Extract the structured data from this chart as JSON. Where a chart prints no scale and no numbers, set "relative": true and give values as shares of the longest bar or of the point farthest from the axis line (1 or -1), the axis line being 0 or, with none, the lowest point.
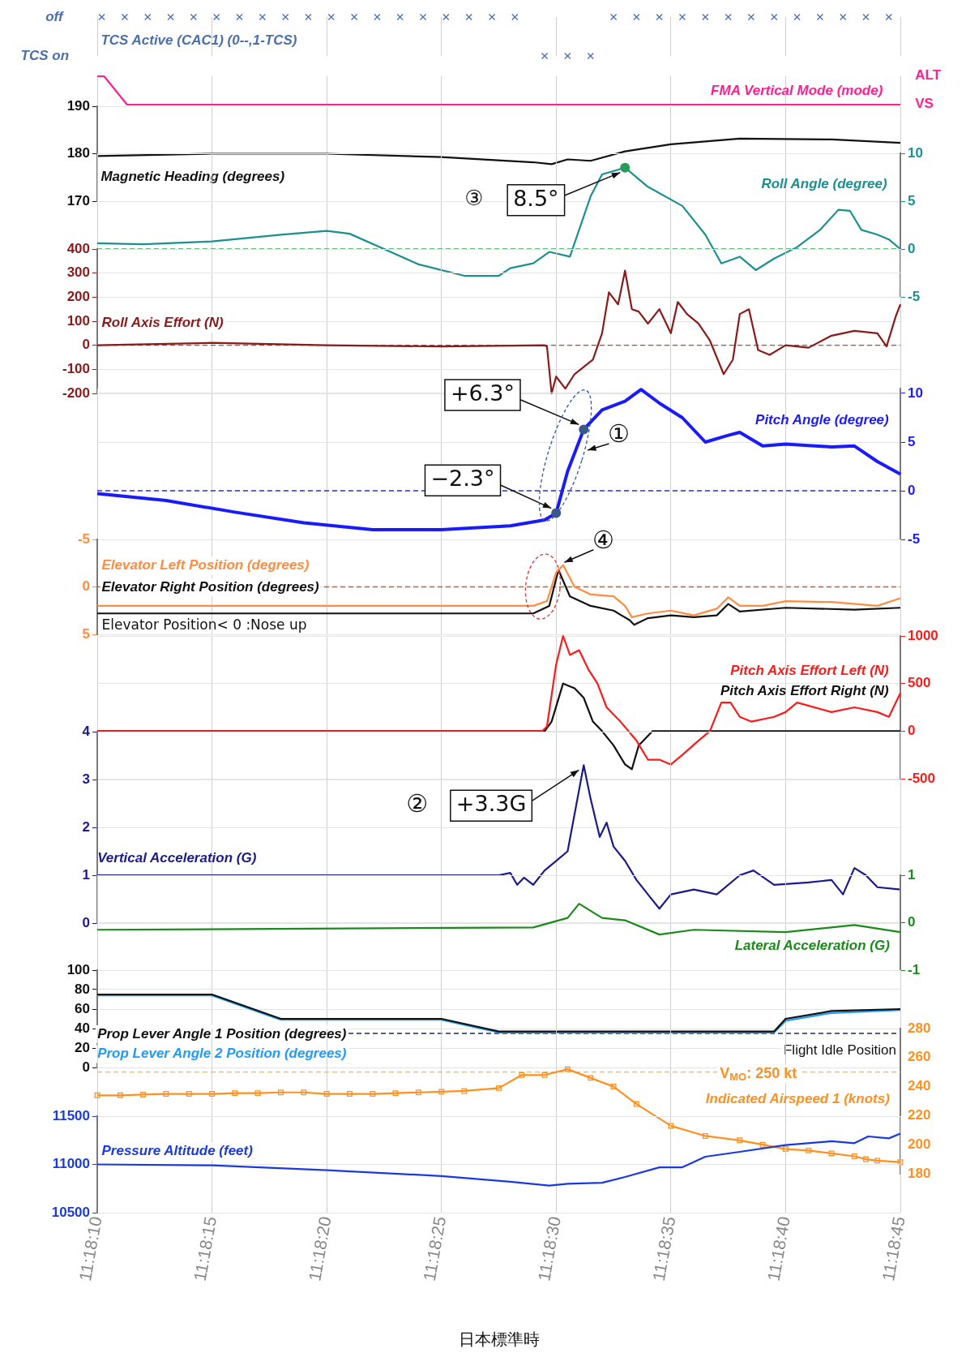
{
  "chart_data": [
    {
      "type": "scatter",
      "relative": true,
      "marker": "cross",
      "grid": true,
      "tick_labels": "y",
      "xlim": [
        11.302778,
        11.3125
      ],
      "xticks": [
        {
          "value": 11.302778,
          "label": null
        },
        {
          "value": 11.304167,
          "label": null
        },
        {
          "value": 11.305556,
          "label": null
        },
        {
          "value": 11.306944,
          "label": null
        },
        {
          "value": 11.308333,
          "label": null
        },
        {
          "value": 11.309722,
          "label": null
        },
        {
          "value": 11.311111,
          "label": null
        },
        {
          "value": 11.3125,
          "label": null
        }
      ],
      "annotations": [
        "off",
        "TCS on"
      ],
      "series": [
        {
          "name": "TCS Active (CAC1) (0--,1-TCS)",
          "color": "#4a6fb0",
          "x": [
            11.302833,
            11.303111,
            11.303389,
            11.303667,
            11.303944,
            11.304222,
            11.3045,
            11.304778,
            11.305056,
            11.305333,
            11.305611,
            11.305889,
            11.306167,
            11.306444,
            11.306722,
            11.307,
            11.307278,
            11.307556,
            11.307833,
            11.308194,
            11.308472,
            11.30875,
            11.309028,
            11.309306,
            11.309583,
            11.309861,
            11.310139,
            11.310417,
            11.310694,
            11.310972,
            11.31125,
            11.311528,
            11.311806,
            11.312083,
            11.312361
          ],
          "values": [
            1,
            1,
            1,
            1,
            1,
            1,
            1,
            1,
            1,
            1,
            1,
            1,
            1,
            1,
            1,
            1,
            1,
            1,
            1,
            0,
            0,
            0,
            1,
            1,
            1,
            1,
            1,
            1,
            1,
            1,
            1,
            1,
            1,
            1,
            1
          ]
        }
      ]
    },
    {
      "type": "line",
      "relative": true,
      "grid": true,
      "tick_labels": "y",
      "xlim": [
        11.302778,
        11.3125
      ],
      "xticks": [
        {
          "value": 11.302778,
          "label": null
        },
        {
          "value": 11.304167,
          "label": null
        },
        {
          "value": 11.305556,
          "label": null
        },
        {
          "value": 11.306944,
          "label": null
        },
        {
          "value": 11.308333,
          "label": null
        },
        {
          "value": 11.309722,
          "label": null
        },
        {
          "value": 11.311111,
          "label": null
        },
        {
          "value": 11.3125,
          "label": null
        }
      ],
      "annotations": [
        "ALT",
        "VS"
      ],
      "series": [
        {
          "name": "FMA Vertical Mode (mode)",
          "color": "#ff1f8f",
          "x": [
            11.302778,
            11.302861,
            11.303139,
            11.3125
          ],
          "values": [
            1,
            1,
            0,
            0
          ]
        }
      ]
    },
    {
      "type": "line",
      "grid": true,
      "tick_labels": "y",
      "xlim": [
        11.302778,
        11.3125
      ],
      "xticks": [
        {
          "value": 11.302778,
          "label": null
        },
        {
          "value": 11.304167,
          "label": null
        },
        {
          "value": 11.305556,
          "label": null
        },
        {
          "value": 11.306944,
          "label": null
        },
        {
          "value": 11.308333,
          "label": null
        },
        {
          "value": 11.309722,
          "label": null
        },
        {
          "value": 11.311111,
          "label": null
        },
        {
          "value": 11.3125,
          "label": null
        }
      ],
      "ylim": [
        170,
        190
      ],
      "yticks": [
        170,
        180,
        190
      ],
      "series": [
        {
          "name": "Magnetic Heading (degrees)",
          "color": "#111111",
          "x": [
            11.302778,
            11.304167,
            11.305556,
            11.306944,
            11.308056,
            11.308278,
            11.308472,
            11.30875,
            11.309167,
            11.309722,
            11.310556,
            11.311667,
            11.3125
          ],
          "values": [
            179.5,
            180,
            180,
            179.3,
            178.2,
            177.8,
            178.8,
            178.5,
            180.5,
            182,
            183.2,
            183,
            182.3
          ]
        }
      ]
    },
    {
      "type": "line",
      "grid": true,
      "tick_labels": "y",
      "xlim": [
        11.302778,
        11.3125
      ],
      "xticks": [
        {
          "value": 11.302778,
          "label": null
        },
        {
          "value": 11.304167,
          "label": null
        },
        {
          "value": 11.305556,
          "label": null
        },
        {
          "value": 11.306944,
          "label": null
        },
        {
          "value": 11.308333,
          "label": null
        },
        {
          "value": 11.309722,
          "label": null
        },
        {
          "value": 11.311111,
          "label": null
        },
        {
          "value": 11.3125,
          "label": null
        }
      ],
      "ylim": [
        -5,
        10
      ],
      "yticks": [
        -5,
        0,
        5,
        10
      ],
      "ref_lines": [
        {
          "axis": "y",
          "value": 0,
          "color": "#2aa84a",
          "line_style": "dashed"
        }
      ],
      "annotations": [
        "③",
        {
          "text": "8.5°",
          "x": 11.309167,
          "y": 8.5
        }
      ],
      "series": [
        {
          "name": "Roll Angle (degree)",
          "color": "#1a9090",
          "x": [
            11.302778,
            11.303333,
            11.304167,
            11.305,
            11.305556,
            11.305833,
            11.30625,
            11.306667,
            11.307222,
            11.307639,
            11.307778,
            11.308056,
            11.30825,
            11.3085,
            11.308611,
            11.30875,
            11.308889,
            11.309167,
            11.309444,
            11.309861,
            11.310139,
            11.310333,
            11.310556,
            11.31075,
            11.310972,
            11.31125,
            11.311528,
            11.31175,
            11.311889,
            11.312028,
            11.312222,
            11.312361,
            11.3125
          ],
          "values": [
            0.6,
            0.5,
            0.8,
            1.5,
            1.9,
            1.6,
            0,
            -1.6,
            -2.8,
            -2.8,
            -2,
            -1.5,
            -0.3,
            -0.8,
            2,
            5.5,
            7.8,
            8.5,
            6.5,
            4.5,
            1.5,
            -1.5,
            -0.8,
            -2.2,
            -1,
            0.2,
            2,
            4.1,
            4,
            2,
            1.5,
            1,
            0
          ]
        }
      ]
    },
    {
      "type": "line",
      "grid": true,
      "tick_labels": "y",
      "xlim": [
        11.302778,
        11.3125
      ],
      "xticks": [
        {
          "value": 11.302778,
          "label": null
        },
        {
          "value": 11.304167,
          "label": null
        },
        {
          "value": 11.305556,
          "label": null
        },
        {
          "value": 11.306944,
          "label": null
        },
        {
          "value": 11.308333,
          "label": null
        },
        {
          "value": 11.309722,
          "label": null
        },
        {
          "value": 11.311111,
          "label": null
        },
        {
          "value": 11.3125,
          "label": null
        }
      ],
      "ylim": [
        -200,
        400
      ],
      "yticks": [
        -200,
        -100,
        0,
        100,
        200,
        300,
        400
      ],
      "ref_lines": [
        {
          "axis": "y",
          "value": 0,
          "color": "#a0502a",
          "line_style": "dashed"
        }
      ],
      "series": [
        {
          "name": "Roll Axis Effort (N)",
          "color": "#8b1a1a",
          "x": [
            11.302778,
            11.304167,
            11.305556,
            11.306944,
            11.308194,
            11.308222,
            11.308278,
            11.308333,
            11.308444,
            11.308556,
            11.308667,
            11.308778,
            11.308889,
            11.308972,
            11.309083,
            11.309167,
            11.30925,
            11.309333,
            11.309444,
            11.309583,
            11.309722,
            11.309806,
            11.309917,
            11.310056,
            11.310194,
            11.310361,
            11.310472,
            11.310556,
            11.310667,
            11.310778,
            11.310917,
            11.311111,
            11.311389,
            11.311667,
            11.311944,
            11.312222,
            11.312333,
            11.312444,
            11.3125
          ],
          "values": [
            0,
            10,
            0,
            -5,
            0,
            -5,
            -200,
            -130,
            -180,
            -120,
            -90,
            -60,
            50,
            220,
            170,
            310,
            150,
            140,
            90,
            150,
            50,
            180,
            130,
            90,
            20,
            -120,
            -60,
            130,
            150,
            -20,
            -40,
            0,
            -10,
            40,
            60,
            50,
            -5,
            120,
            170
          ]
        }
      ]
    },
    {
      "type": "line",
      "grid": true,
      "tick_labels": "y",
      "xlim": [
        11.302778,
        11.3125
      ],
      "xticks": [
        {
          "value": 11.302778,
          "label": null
        },
        {
          "value": 11.304167,
          "label": null
        },
        {
          "value": 11.305556,
          "label": null
        },
        {
          "value": 11.306944,
          "label": null
        },
        {
          "value": 11.308333,
          "label": null
        },
        {
          "value": 11.309722,
          "label": null
        },
        {
          "value": 11.311111,
          "label": null
        },
        {
          "value": 11.3125,
          "label": null
        }
      ],
      "ylim": [
        -5,
        10.5
      ],
      "yticks": [
        -5,
        0,
        5,
        10
      ],
      "ref_lines": [
        {
          "axis": "y",
          "value": 0,
          "color": "#2a3ab0",
          "line_style": "dashed"
        }
      ],
      "annotations": [
        {
          "text": "+6.3°",
          "x": 11.308667,
          "y": 6.3
        },
        {
          "text": "−2.3°",
          "x": 11.308333,
          "y": -2.3
        },
        "①"
      ],
      "series": [
        {
          "name": "Pitch Angle (degree)",
          "color": "#1a1aff",
          "x": [
            11.302778,
            11.303611,
            11.304444,
            11.305278,
            11.306111,
            11.306944,
            11.307778,
            11.308194,
            11.308333,
            11.308472,
            11.308667,
            11.308889,
            11.309167,
            11.309361,
            11.309583,
            11.309861,
            11.310139,
            11.310417,
            11.310556,
            11.310833,
            11.311111,
            11.311667,
            11.311944,
            11.312222,
            11.3125
          ],
          "values": [
            -0.3,
            -1,
            -2.2,
            -3.3,
            -4,
            -4,
            -3.6,
            -3,
            -2.3,
            2,
            6.3,
            8.3,
            9.2,
            10.4,
            9,
            7.5,
            5,
            5.7,
            6,
            4.6,
            4.8,
            4.5,
            4.6,
            3,
            1.7
          ]
        }
      ]
    },
    {
      "type": "line",
      "grid": true,
      "tick_labels": "y",
      "xlim": [
        11.302778,
        11.3125
      ],
      "xticks": [
        {
          "value": 11.302778,
          "label": null
        },
        {
          "value": 11.304167,
          "label": null
        },
        {
          "value": 11.305556,
          "label": null
        },
        {
          "value": 11.306944,
          "label": null
        },
        {
          "value": 11.308333,
          "label": null
        },
        {
          "value": 11.309722,
          "label": null
        },
        {
          "value": 11.311111,
          "label": null
        },
        {
          "value": 11.3125,
          "label": null
        }
      ],
      "ylim": [
        5,
        -5
      ],
      "yticks": [
        -5,
        0,
        5
      ],
      "ref_lines": [
        {
          "axis": "y",
          "value": 0,
          "color": "#c0602a",
          "line_style": "dashed"
        }
      ],
      "annotations": [
        "④",
        "Elevator Position< 0 :Nose up"
      ],
      "series": [
        {
          "name": "Elevator Left Position (degrees)",
          "color": "#ff8c40",
          "x": [
            11.302778,
            11.308056,
            11.308222,
            11.308333,
            11.308417,
            11.308556,
            11.30875,
            11.309028,
            11.309167,
            11.30925,
            11.309444,
            11.309722,
            11.31,
            11.310278,
            11.310417,
            11.310556,
            11.310833,
            11.311111,
            11.311667,
            11.312222,
            11.3125
          ],
          "values": [
            2,
            2,
            1.5,
            -1.5,
            -2.3,
            0,
            0.8,
            1,
            2,
            3.2,
            2.8,
            2.5,
            3,
            2.3,
            1.1,
            2,
            2,
            1.5,
            1.6,
            2,
            1.2
          ]
        },
        {
          "name": "Elevator Right Position (degrees)",
          "color": "#111111",
          "x": [
            11.302778,
            11.308056,
            11.30825,
            11.308361,
            11.3085,
            11.30875,
            11.309028,
            11.309222,
            11.309278,
            11.309444,
            11.309722,
            11.31,
            11.310278,
            11.310417,
            11.310556,
            11.311111,
            11.311944,
            11.3125
          ],
          "values": [
            2.8,
            2.8,
            2,
            -1.8,
            1,
            2,
            2.5,
            3.5,
            4,
            3.3,
            3,
            3.2,
            3,
            1.8,
            2.6,
            2.2,
            2.4,
            2.2
          ]
        }
      ]
    },
    {
      "type": "line",
      "grid": true,
      "tick_labels": "y",
      "xlim": [
        11.302778,
        11.3125
      ],
      "xticks": [
        {
          "value": 11.302778,
          "label": null
        },
        {
          "value": 11.304167,
          "label": null
        },
        {
          "value": 11.305556,
          "label": null
        },
        {
          "value": 11.306944,
          "label": null
        },
        {
          "value": 11.308333,
          "label": null
        },
        {
          "value": 11.309722,
          "label": null
        },
        {
          "value": 11.311111,
          "label": null
        },
        {
          "value": 11.3125,
          "label": null
        }
      ],
      "y2lim": [
        -500,
        1000
      ],
      "y2ticks": [
        -500,
        0,
        500,
        1000
      ],
      "series": [
        {
          "name": "Pitch Axis Effort Left (N)",
          "color": "#ff1a1a",
          "axis": "y2",
          "x": [
            11.302778,
            11.308167,
            11.308222,
            11.308333,
            11.308417,
            11.3085,
            11.308611,
            11.308722,
            11.308833,
            11.308944,
            11.309111,
            11.309306,
            11.309444,
            11.309583,
            11.309722,
            11.309861,
            11.310056,
            11.310194,
            11.310333,
            11.310444,
            11.310556,
            11.310694,
            11.310972,
            11.311111,
            11.31125,
            11.311667,
            11.311944,
            11.312222,
            11.312361,
            11.3125
          ],
          "values": [
            0,
            0,
            50,
            700,
            1000,
            800,
            850,
            650,
            500,
            250,
            100,
            -100,
            -300,
            -300,
            -350,
            -250,
            -100,
            0,
            300,
            300,
            150,
            100,
            150,
            200,
            300,
            200,
            250,
            200,
            150,
            400
          ]
        },
        {
          "name": "Pitch Axis Effort Right (N)",
          "color": "#111111",
          "axis": "y2",
          "x": [
            11.302778,
            11.308194,
            11.308278,
            11.308417,
            11.308556,
            11.308667,
            11.308778,
            11.308889,
            11.309028,
            11.309167,
            11.30925,
            11.309333,
            11.3095,
            11.309722,
            11.311111,
            11.3125
          ],
          "values": [
            0,
            0,
            100,
            500,
            450,
            350,
            100,
            0,
            -150,
            -350,
            -400,
            -150,
            0,
            0,
            0,
            0
          ]
        }
      ]
    },
    {
      "type": "line",
      "grid": true,
      "tick_labels": "y",
      "xlim": [
        11.302778,
        11.3125
      ],
      "xticks": [
        {
          "value": 11.302778,
          "label": null
        },
        {
          "value": 11.304167,
          "label": null
        },
        {
          "value": 11.305556,
          "label": null
        },
        {
          "value": 11.306944,
          "label": null
        },
        {
          "value": 11.308333,
          "label": null
        },
        {
          "value": 11.309722,
          "label": null
        },
        {
          "value": 11.311111,
          "label": null
        },
        {
          "value": 11.3125,
          "label": null
        }
      ],
      "ylim": [
        0,
        4
      ],
      "yticks": [
        0,
        1,
        2,
        3,
        4
      ],
      "annotations": [
        "②",
        {
          "text": "+3.3G",
          "x": 11.308667,
          "y": 3.3
        }
      ],
      "series": [
        {
          "name": "Vertical Acceleration (G)",
          "color": "#1a1a8b",
          "x": [
            11.302778,
            11.307639,
            11.307778,
            11.307861,
            11.307944,
            11.308056,
            11.308194,
            11.308333,
            11.308472,
            11.308667,
            11.30875,
            11.308861,
            11.308944,
            11.309028,
            11.309167,
            11.309306,
            11.309444,
            11.309583,
            11.309722,
            11.31,
            11.310278,
            11.310556,
            11.310722,
            11.310972,
            11.311389,
            11.311667,
            11.311806,
            11.311944,
            11.312083,
            11.312222,
            11.3125
          ],
          "values": [
            1,
            1,
            1.05,
            0.8,
            0.95,
            0.8,
            1.1,
            1.3,
            1.5,
            3.3,
            2.6,
            1.8,
            2.1,
            1.6,
            1.3,
            0.9,
            0.6,
            0.3,
            0.6,
            0.7,
            0.6,
            1,
            1.1,
            0.8,
            0.85,
            0.9,
            0.6,
            1.15,
            1,
            0.75,
            0.7
          ]
        }
      ]
    },
    {
      "type": "line",
      "grid": true,
      "tick_labels": "y",
      "xlim": [
        11.302778,
        11.3125
      ],
      "xticks": [
        {
          "value": 11.302778,
          "label": null
        },
        {
          "value": 11.304167,
          "label": null
        },
        {
          "value": 11.305556,
          "label": null
        },
        {
          "value": 11.306944,
          "label": null
        },
        {
          "value": 11.308333,
          "label": null
        },
        {
          "value": 11.309722,
          "label": null
        },
        {
          "value": 11.311111,
          "label": null
        },
        {
          "value": 11.3125,
          "label": null
        }
      ],
      "y2lim": [
        -1,
        1
      ],
      "y2ticks": [
        -1,
        0,
        1
      ],
      "series": [
        {
          "name": "Lateral Acceleration (G)",
          "color": "#1a8a1a",
          "axis": "y2",
          "x": [
            11.302778,
            11.308056,
            11.308472,
            11.308611,
            11.308889,
            11.309167,
            11.309583,
            11.31,
            11.311111,
            11.311944,
            11.3125
          ],
          "values": [
            -0.15,
            -0.1,
            0.1,
            0.4,
            0.1,
            0.05,
            -0.25,
            -0.15,
            -0.2,
            -0.05,
            -0.2
          ]
        }
      ]
    },
    {
      "type": "line",
      "grid": true,
      "tick_labels": "y",
      "xlim": [
        11.302778,
        11.3125
      ],
      "xticks": [
        {
          "value": 11.302778,
          "label": null
        },
        {
          "value": 11.304167,
          "label": null
        },
        {
          "value": 11.305556,
          "label": null
        },
        {
          "value": 11.306944,
          "label": null
        },
        {
          "value": 11.308333,
          "label": null
        },
        {
          "value": 11.309722,
          "label": null
        },
        {
          "value": 11.311111,
          "label": null
        },
        {
          "value": 11.3125,
          "label": null
        }
      ],
      "ylim": [
        0,
        100
      ],
      "yticks": [
        0,
        20,
        40,
        60,
        80,
        100
      ],
      "ref_lines": [
        {
          "axis": "y",
          "value": 35,
          "label": "Flight Idle Position",
          "color": "#1a2a6a",
          "line_style": "dashed"
        }
      ],
      "series": [
        {
          "name": "Prop Lever Angle 1 Position (degrees)",
          "color": "#111111",
          "x": [
            11.302778,
            11.304167,
            11.305,
            11.306944,
            11.307639,
            11.310972,
            11.311111,
            11.311667,
            11.3125
          ],
          "values": [
            75,
            75,
            50,
            50,
            37,
            37,
            50,
            58,
            60
          ]
        },
        {
          "name": "Prop Lever Angle 2 Position (degrees)",
          "color": "#1e9bff",
          "x": [
            11.302778,
            11.304167,
            11.305,
            11.306944,
            11.307639,
            11.310972,
            11.311111,
            11.311667,
            11.3125
          ],
          "values": [
            74,
            74,
            49,
            49,
            36,
            36,
            48,
            56,
            59
          ]
        }
      ]
    },
    {
      "type": "line",
      "grid": "x",
      "tick_labels": "y",
      "xlim": [
        11.302778,
        11.3125
      ],
      "xticks": [
        {
          "value": 11.302778,
          "label": null
        },
        {
          "value": 11.304167,
          "label": null
        },
        {
          "value": 11.305556,
          "label": null
        },
        {
          "value": 11.306944,
          "label": null
        },
        {
          "value": 11.308333,
          "label": null
        },
        {
          "value": 11.309722,
          "label": null
        },
        {
          "value": 11.311111,
          "label": null
        },
        {
          "value": 11.3125,
          "label": null
        }
      ],
      "y2lim": [
        180,
        280
      ],
      "y2ticks": [
        180,
        200,
        220,
        240,
        260,
        280
      ],
      "marker": "square",
      "ref_lines": [
        {
          "axis": "y2",
          "value": 250,
          "label": "V$_{MO}$: 250 kt",
          "color": "#f0c020",
          "line_style": "dashed"
        }
      ],
      "series": [
        {
          "name": "Indicated Airspeed 1 (knots)",
          "color": "#ff9020",
          "axis": "y2",
          "x": [
            11.302778,
            11.303056,
            11.303333,
            11.303611,
            11.303889,
            11.304167,
            11.304444,
            11.304722,
            11.305,
            11.305278,
            11.305556,
            11.305833,
            11.306111,
            11.306389,
            11.306667,
            11.306944,
            11.307222,
            11.307639,
            11.307917,
            11.308194,
            11.308472,
            11.30875,
            11.309028,
            11.309306,
            11.309722,
            11.310139,
            11.310556,
            11.310833,
            11.311111,
            11.311389,
            11.311667,
            11.311944,
            11.312083,
            11.312222,
            11.3125
          ],
          "values": [
            234,
            234,
            234.5,
            235,
            235,
            235,
            235.5,
            235.5,
            236,
            236,
            235,
            235,
            235,
            235.5,
            236,
            236.5,
            237,
            239,
            248,
            248,
            252,
            246,
            240,
            228,
            213,
            206,
            203,
            200,
            197,
            196,
            194,
            192,
            190,
            189,
            188
          ]
        }
      ]
    },
    {
      "type": "line",
      "grid": true,
      "xlim": [
        11.302778,
        11.3125
      ],
      "xticks": [
        {
          "value": 11.302778,
          "label": "11:18:10"
        },
        {
          "value": 11.304167,
          "label": "11:18:15"
        },
        {
          "value": 11.305556,
          "label": "11:18:20"
        },
        {
          "value": 11.306944,
          "label": "11:18:25"
        },
        {
          "value": 11.308333,
          "label": "11:18:30"
        },
        {
          "value": 11.309722,
          "label": "11:18:35"
        },
        {
          "value": 11.311111,
          "label": "11:18:40"
        },
        {
          "value": 11.3125,
          "label": "11:18:45"
        }
      ],
      "xlabel": "日本標準時",
      "ylim": [
        10500,
        11500
      ],
      "yticks": [
        10500,
        11000,
        11500
      ],
      "series": [
        {
          "name": "Pressure Altitude (feet)",
          "color": "#1a3ae0",
          "x": [
            11.302778,
            11.304167,
            11.305556,
            11.306944,
            11.307778,
            11.30825,
            11.308472,
            11.308889,
            11.309167,
            11.309583,
            11.309861,
            11.310139,
            11.310556,
            11.311111,
            11.311667,
            11.311944,
            11.312111,
            11.312361,
            11.3125
          ],
          "values": [
            11000,
            10990,
            10940,
            10880,
            10820,
            10780,
            10800,
            10810,
            10870,
            10970,
            10970,
            11080,
            11130,
            11200,
            11240,
            11220,
            11290,
            11270,
            11320
          ]
        }
      ]
    }
  ]
}
